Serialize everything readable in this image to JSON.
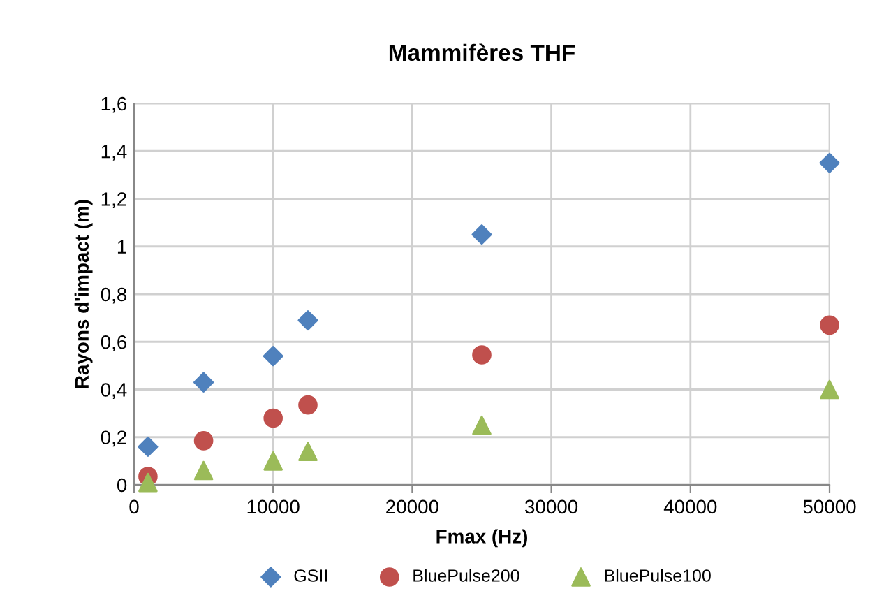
{
  "chart_data": {
    "type": "scatter",
    "title": "Mammifères THF",
    "xlabel": "Fmax (Hz)",
    "ylabel": "Rayons d'impact (m)",
    "x": [
      1000,
      5000,
      10000,
      12500,
      25000,
      50000
    ],
    "series": [
      {
        "name": "GSII",
        "color": "#4f81bd",
        "marker": "diamond",
        "values": [
          0.16,
          0.43,
          0.54,
          0.69,
          1.05,
          1.35
        ]
      },
      {
        "name": "BluePulse200",
        "color": "#c0504d",
        "marker": "circle",
        "values": [
          0.035,
          0.185,
          0.28,
          0.335,
          0.545,
          0.67
        ]
      },
      {
        "name": "BluePulse100",
        "color": "#9bbb59",
        "marker": "triangle",
        "values": [
          0.01,
          0.06,
          0.1,
          0.14,
          0.25,
          0.4
        ]
      }
    ],
    "xlim": [
      0,
      50000
    ],
    "xticks": [
      0,
      10000,
      20000,
      30000,
      40000,
      50000
    ],
    "ylim": [
      0,
      1.6
    ],
    "yticks": [
      0,
      {
        "value": 0.2,
        "label": "0,2"
      },
      {
        "value": 0.4,
        "label": "0,4"
      },
      {
        "value": 0.6,
        "label": "0,6"
      },
      {
        "value": 0.8,
        "label": "0,8"
      },
      1,
      {
        "value": 1.2,
        "label": "1,2"
      },
      {
        "value": 1.4,
        "label": "1,4"
      },
      {
        "value": 1.6,
        "label": "1,6"
      }
    ],
    "grid": true,
    "legend": "bottom"
  }
}
